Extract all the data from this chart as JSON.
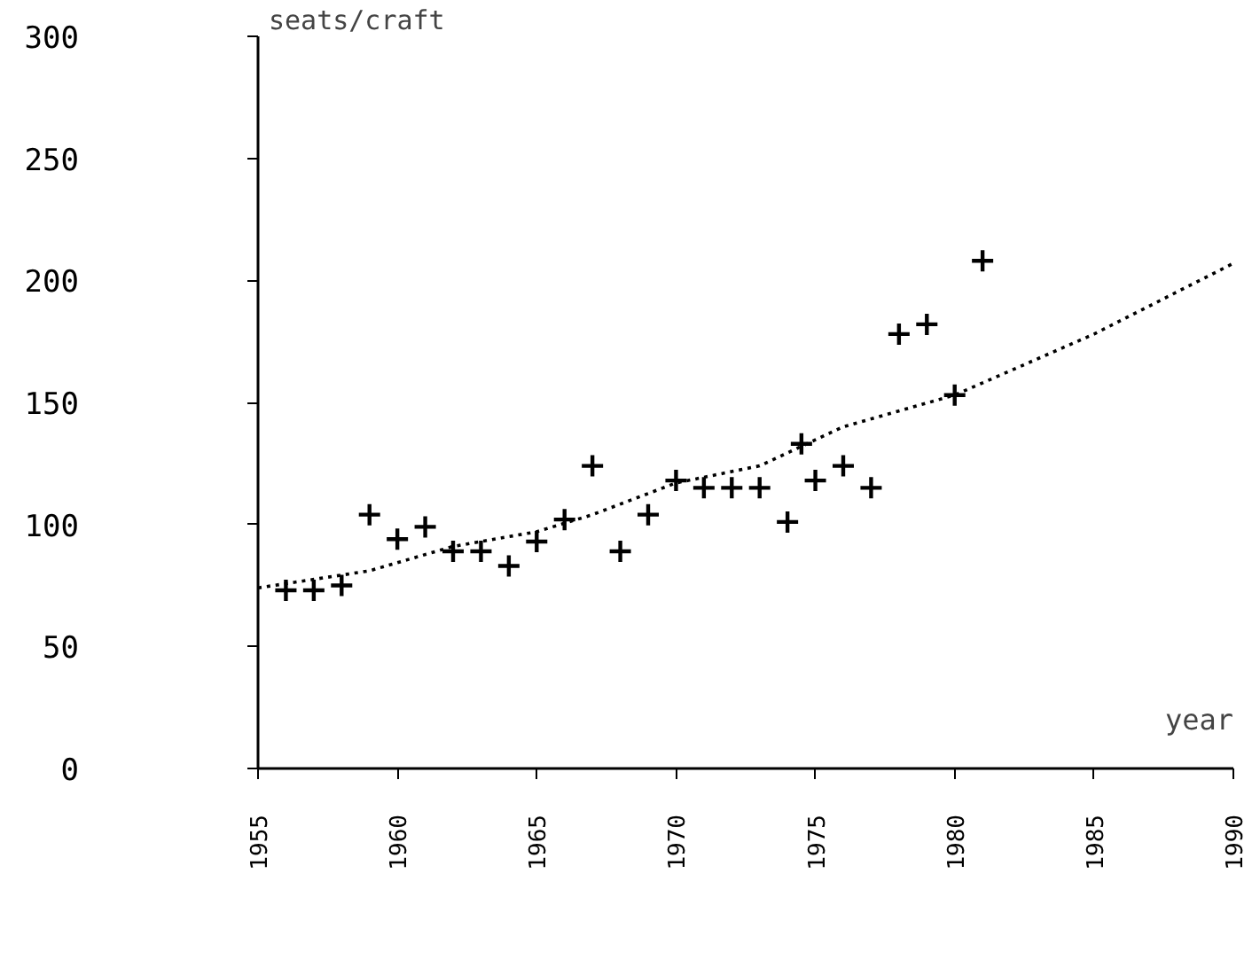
{
  "chart_data": {
    "type": "scatter",
    "xlabel": "year",
    "ylabel": "seats/craft",
    "xlim": [
      1955,
      1990
    ],
    "ylim": [
      0,
      300
    ],
    "xticks": [
      1955,
      1960,
      1965,
      1970,
      1975,
      1980,
      1985,
      1990
    ],
    "yticks": [
      0,
      50,
      100,
      150,
      200,
      250,
      300
    ],
    "grid": false,
    "series": [
      {
        "type": "scatter",
        "marker": "cross",
        "color": "#000000",
        "x": [
          1956,
          1957,
          1958,
          1959,
          1960,
          1961,
          1962,
          1963,
          1964,
          1965,
          1966,
          1967,
          1968,
          1969,
          1970,
          1971,
          1972,
          1973,
          1974,
          1974.5,
          1975,
          1976,
          1977,
          1978,
          1979,
          1980,
          1981
        ],
        "values": [
          73,
          73,
          75,
          104,
          94,
          99,
          89,
          89,
          83,
          93,
          102,
          124,
          89,
          104,
          118,
          115,
          115,
          115,
          101,
          133,
          118,
          124,
          115,
          178,
          182,
          153,
          208
        ]
      },
      {
        "type": "line",
        "line_style": "dotted",
        "marker": "none",
        "color": "#000000",
        "x": [
          1955,
          1959,
          1962,
          1965,
          1967,
          1970,
          1973,
          1976,
          1980,
          1985,
          1990
        ],
        "values": [
          74,
          81,
          91,
          97,
          104,
          117,
          124,
          140,
          153,
          178,
          207
        ]
      }
    ]
  }
}
